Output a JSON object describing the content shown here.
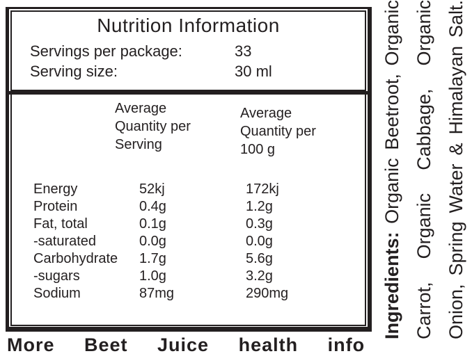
{
  "header": {
    "title": "Nutrition Information",
    "rows": [
      {
        "label": "Servings per package:",
        "value": "33"
      },
      {
        "label": "Serving size:",
        "value": "30 ml"
      }
    ]
  },
  "table": {
    "col1_header": "Average Quantity per Serving",
    "col2_header": "Average Quantity per 100 g",
    "rows": [
      {
        "nutrient": "Energy",
        "per_serving": "52kj",
        "per_100g": "172kj"
      },
      {
        "nutrient": "Protein",
        "per_serving": "0.4g",
        "per_100g": "1.2g"
      },
      {
        "nutrient": "Fat, total",
        "per_serving": "0.1g",
        "per_100g": "0.3g"
      },
      {
        "nutrient": "-saturated",
        "per_serving": "0.0g",
        "per_100g": "0.0g"
      },
      {
        "nutrient": "Carbohydrate",
        "per_serving": "1.7g",
        "per_100g": "5.6g"
      },
      {
        "nutrient": "-sugars",
        "per_serving": "1.0g",
        "per_100g": "3.2g"
      },
      {
        "nutrient": "Sodium",
        "per_serving": "87mg",
        "per_100g": "290mg"
      }
    ]
  },
  "ingredients": {
    "label": "Ingredients:",
    "line1_rest": " Organic Beetroot, Organic",
    "line2": "Carrot, Organic Cabbage, Organic",
    "line3": "Onion, Spring Water & Himalayan Salt."
  },
  "bottom_partial_text": "More Beet Juice health info",
  "colors": {
    "ink": "#231f20",
    "background": "#ffffff"
  }
}
